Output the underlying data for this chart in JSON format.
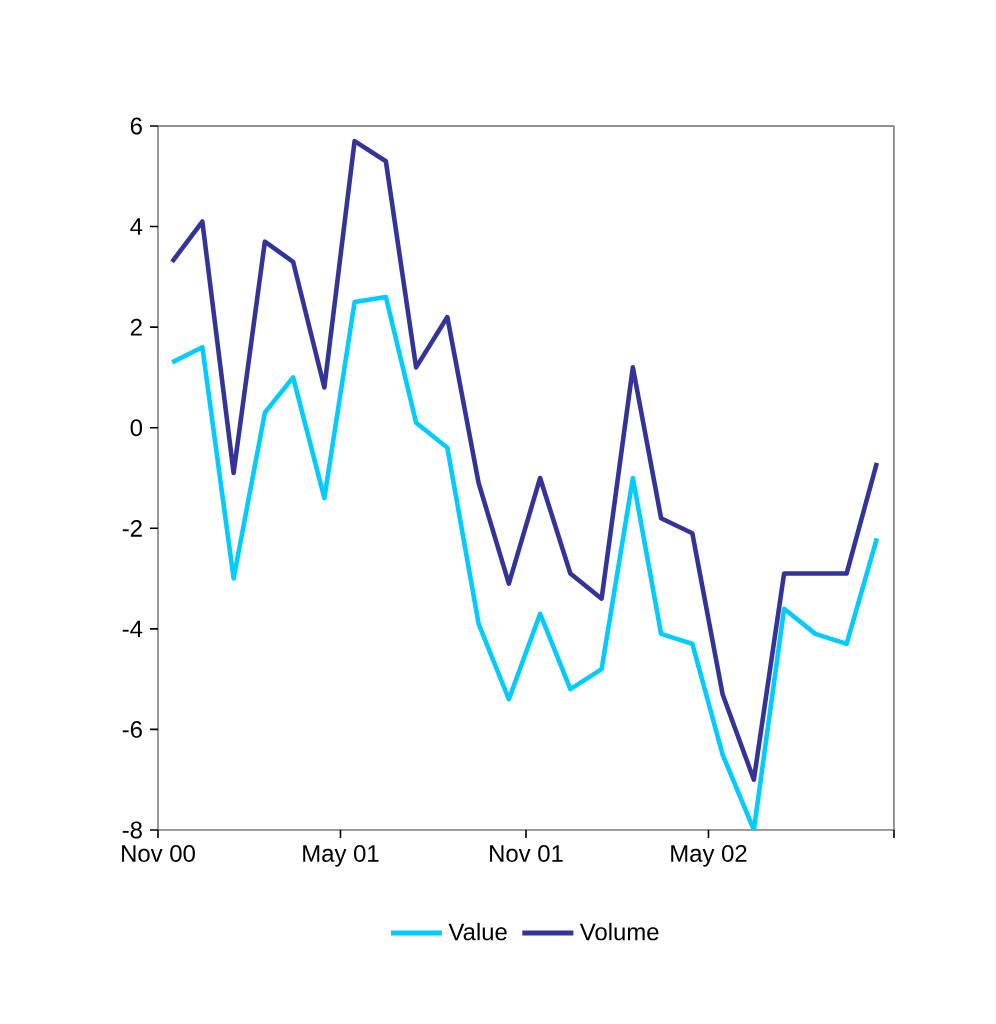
{
  "chart_data": {
    "type": "line",
    "x": [
      "2000-11-15",
      "2000-12-15",
      "2001-01-15",
      "2001-02-15",
      "2001-03-15",
      "2001-04-15",
      "2001-05-15",
      "2001-06-15",
      "2001-07-15",
      "2001-08-15",
      "2001-09-15",
      "2001-10-15",
      "2001-11-15",
      "2001-12-15",
      "2002-01-15",
      "2002-02-15",
      "2002-03-15",
      "2002-04-15",
      "2002-05-15",
      "2002-06-15",
      "2002-07-15",
      "2002-08-15",
      "2002-09-15",
      "2002-10-15"
    ],
    "series": [
      {
        "name": "Value",
        "color": "#00ccff",
        "values": [
          1.3,
          1.6,
          -3.0,
          0.3,
          1.0,
          -1.4,
          2.5,
          2.6,
          0.1,
          -0.4,
          -3.9,
          -5.4,
          -3.7,
          -5.2,
          -4.8,
          -1.0,
          -4.1,
          -4.3,
          -6.5,
          -8.0,
          -3.6,
          -4.1,
          -4.3,
          -2.2
        ]
      },
      {
        "name": "Volume",
        "color": "#333399",
        "values": [
          3.3,
          4.1,
          -0.9,
          3.7,
          3.3,
          0.8,
          5.7,
          5.3,
          1.2,
          2.2,
          -1.1,
          -3.1,
          -1.0,
          -2.9,
          -3.4,
          1.2,
          -1.8,
          -2.1,
          -5.3,
          -7.0,
          -2.9,
          -2.9,
          -2.9,
          -0.7
        ]
      }
    ],
    "xlim": [
      "2000-11-01",
      "2002-11-01"
    ],
    "xticks": [
      {
        "value": "2000-11-01",
        "label": "Nov 00"
      },
      {
        "value": "2001-05-01",
        "label": "May 01"
      },
      {
        "value": "2001-11-01",
        "label": "Nov 01"
      },
      {
        "value": "2002-05-01",
        "label": "May 02"
      },
      {
        "value": "2002-11-01",
        "label": null
      }
    ],
    "ylim": [
      -8,
      6
    ],
    "yticks": [
      -8,
      -6,
      -4,
      -2,
      0,
      2,
      4,
      6
    ],
    "grid": false,
    "legend": "bottom",
    "marker": "none",
    "line_style": "solid"
  }
}
